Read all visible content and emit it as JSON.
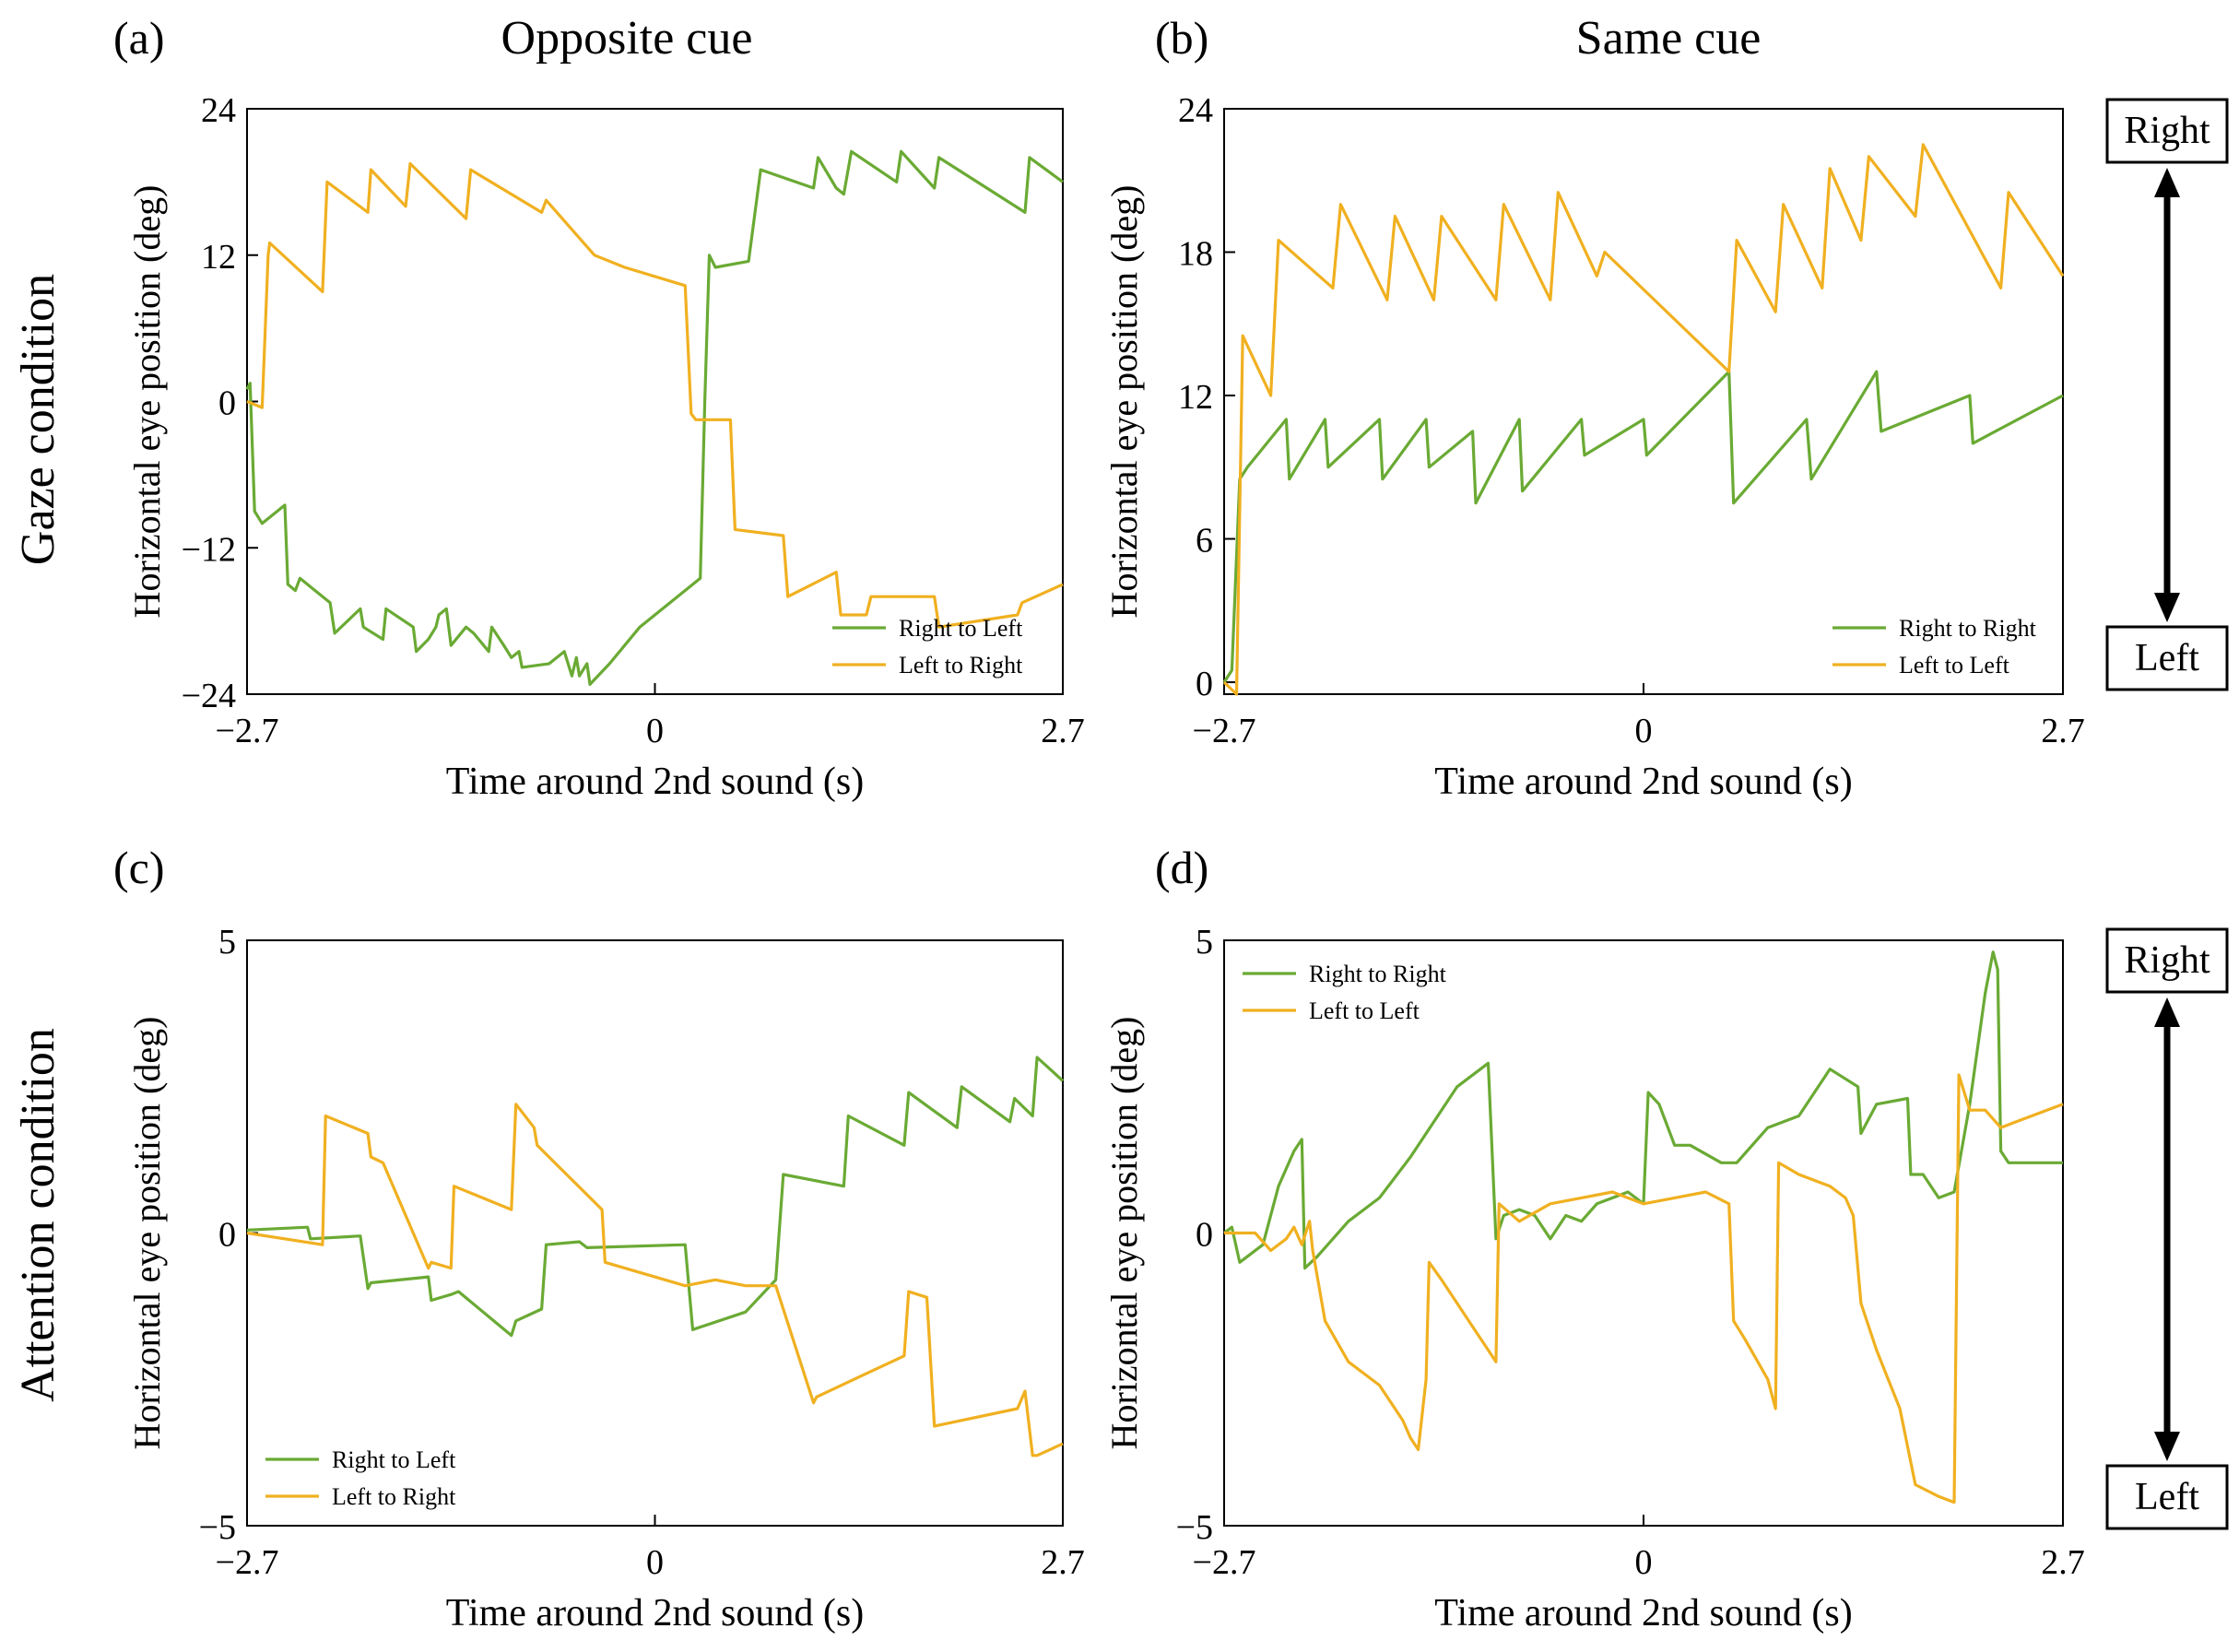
{
  "figure": {
    "col_titles": [
      "Opposite cue",
      "Same cue"
    ],
    "row_titles": [
      "Gaze condition",
      "Attention condition"
    ],
    "direction_right": "Right",
    "direction_left": "Left",
    "colors": {
      "green": "#6aaa34",
      "orange": "#f0b020"
    }
  },
  "chart_data": [
    {
      "panel": "(a)",
      "type": "line",
      "xlabel": "Time around 2nd sound (s)",
      "ylabel": "Horizontal eye position (deg)",
      "xlim": [
        -2.7,
        2.7
      ],
      "ylim": [
        -24,
        24
      ],
      "xticks": [
        -2.7,
        0,
        2.7
      ],
      "xtick_labels": [
        "−2.7",
        "0",
        "2.7"
      ],
      "yticks": [
        -24,
        -12,
        0,
        12,
        24
      ],
      "ytick_labels": [
        "−24",
        "−12",
        "0",
        "12",
        "24"
      ],
      "legend_position": "bottom-right",
      "series": [
        {
          "name": "Right to Left",
          "color": "#6aaa34",
          "x": [
            -2.7,
            -2.68,
            -2.65,
            -2.6,
            -2.45,
            -2.43,
            -2.38,
            -2.35,
            -2.15,
            -2.12,
            -1.95,
            -1.93,
            -1.8,
            -1.78,
            -1.6,
            -1.58,
            -1.5,
            -1.45,
            -1.43,
            -1.38,
            -1.35,
            -1.25,
            -1.2,
            -1.1,
            -1.08,
            -1.0,
            -0.95,
            -0.9,
            -0.88,
            -0.7,
            -0.6,
            -0.55,
            -0.52,
            -0.5,
            -0.45,
            -0.43,
            -0.3,
            -0.1,
            0.1,
            0.3,
            0.33,
            0.36,
            0.4,
            0.62,
            0.7,
            1.05,
            1.08,
            1.2,
            1.25,
            1.3,
            1.6,
            1.63,
            1.85,
            1.88,
            2.45,
            2.48,
            2.7
          ],
          "y": [
            1,
            1.5,
            -9,
            -10,
            -8.5,
            -15,
            -15.5,
            -14.5,
            -16.5,
            -19,
            -17,
            -18.5,
            -19.5,
            -17,
            -18.5,
            -20.5,
            -19.5,
            -18.5,
            -17.5,
            -17,
            -20,
            -18.5,
            -19,
            -20.5,
            -18.5,
            -20,
            -21,
            -20.5,
            -21.8,
            -21.5,
            -20.5,
            -22.5,
            -21,
            -22.5,
            -21.5,
            -23.2,
            -21.5,
            -18.5,
            -16.5,
            -14.5,
            0,
            12,
            11,
            11.5,
            19,
            17.5,
            20,
            17.5,
            17,
            20.5,
            18,
            20.5,
            17.5,
            20,
            15.5,
            20,
            18
          ]
        },
        {
          "name": "Left to Right",
          "color": "#f0b020",
          "x": [
            -2.7,
            -2.6,
            -2.56,
            -2.55,
            -2.2,
            -2.17,
            -1.9,
            -1.88,
            -1.65,
            -1.62,
            -1.25,
            -1.22,
            -0.75,
            -0.72,
            -0.4,
            -0.2,
            0.2,
            0.24,
            0.27,
            0.5,
            0.53,
            0.85,
            0.88,
            1.2,
            1.23,
            1.4,
            1.43,
            1.85,
            1.88,
            2.4,
            2.43,
            2.7
          ],
          "y": [
            0,
            -0.5,
            12,
            13,
            9,
            18,
            15.5,
            19,
            16,
            19.5,
            15,
            19,
            15.5,
            16.5,
            12,
            11,
            9.5,
            -1,
            -1.5,
            -1.5,
            -10.5,
            -11,
            -16,
            -14,
            -17.5,
            -17.5,
            -16,
            -16,
            -18.5,
            -17.5,
            -16.5,
            -15
          ]
        }
      ]
    },
    {
      "panel": "(b)",
      "type": "line",
      "xlabel": "Time around 2nd sound (s)",
      "ylabel": "Horizontal eye position (deg)",
      "xlim": [
        -2.7,
        2.7
      ],
      "ylim": [
        -0.5,
        24
      ],
      "xticks": [
        -2.7,
        0,
        2.7
      ],
      "xtick_labels": [
        "−2.7",
        "0",
        "2.7"
      ],
      "yticks": [
        0,
        6,
        12,
        18,
        24
      ],
      "ytick_labels": [
        "0",
        "6",
        "12",
        "18",
        "24"
      ],
      "legend_position": "bottom-right",
      "series": [
        {
          "name": "Right to Right",
          "color": "#6aaa34",
          "x": [
            -2.7,
            -2.65,
            -2.6,
            -2.55,
            -2.3,
            -2.28,
            -2.05,
            -2.03,
            -1.7,
            -1.68,
            -1.4,
            -1.38,
            -1.1,
            -1.08,
            -0.8,
            -0.78,
            -0.4,
            -0.38,
            0.0,
            0.02,
            0.55,
            0.58,
            1.05,
            1.08,
            1.5,
            1.53,
            2.1,
            2.12,
            2.7
          ],
          "y": [
            0,
            0.5,
            8.5,
            9,
            11,
            8.5,
            11,
            9,
            11,
            8.5,
            11,
            9,
            10.5,
            7.5,
            11,
            8,
            11,
            9.5,
            11,
            9.5,
            13,
            7.5,
            11,
            8.5,
            13,
            10.5,
            12,
            10,
            12
          ]
        },
        {
          "name": "Left to Left",
          "color": "#f0b020",
          "x": [
            -2.7,
            -2.62,
            -2.58,
            -2.4,
            -2.35,
            -2.0,
            -1.95,
            -1.65,
            -1.6,
            -1.35,
            -1.3,
            -0.95,
            -0.9,
            -0.6,
            -0.55,
            -0.3,
            -0.25,
            0.55,
            0.6,
            0.85,
            0.9,
            1.15,
            1.2,
            1.4,
            1.45,
            1.75,
            1.8,
            2.3,
            2.35,
            2.7
          ],
          "y": [
            0,
            -0.5,
            14.5,
            12,
            18.5,
            16.5,
            20,
            16,
            19.5,
            16,
            19.5,
            16,
            20,
            16,
            20.5,
            17,
            18,
            13,
            18.5,
            15.5,
            20,
            16.5,
            21.5,
            18.5,
            22,
            19.5,
            22.5,
            16.5,
            20.5,
            17
          ]
        }
      ]
    },
    {
      "panel": "(c)",
      "type": "line",
      "xlabel": "Time around 2nd sound (s)",
      "ylabel": "Horizontal eye position (deg)",
      "xlim": [
        -2.7,
        2.7
      ],
      "ylim": [
        -5,
        5
      ],
      "xticks": [
        -2.7,
        0,
        2.7
      ],
      "xtick_labels": [
        "−2.7",
        "0",
        "2.7"
      ],
      "yticks": [
        -5,
        0,
        5
      ],
      "ytick_labels": [
        "−5",
        "0",
        "5"
      ],
      "legend_position": "bottom-left",
      "series": [
        {
          "name": "Right to Left",
          "color": "#6aaa34",
          "x": [
            -2.7,
            -2.3,
            -2.28,
            -1.95,
            -1.9,
            -1.88,
            -1.5,
            -1.48,
            -1.35,
            -1.3,
            -0.95,
            -0.92,
            -0.75,
            -0.72,
            -0.5,
            -0.45,
            0.2,
            0.25,
            0.6,
            0.8,
            0.85,
            1.25,
            1.28,
            1.65,
            1.68,
            2.0,
            2.03,
            2.35,
            2.38,
            2.5,
            2.53,
            2.7
          ],
          "y": [
            0.05,
            0.1,
            -0.1,
            -0.05,
            -0.95,
            -0.85,
            -0.75,
            -1.15,
            -1.05,
            -1.0,
            -1.75,
            -1.5,
            -1.3,
            -0.2,
            -0.15,
            -0.25,
            -0.2,
            -1.65,
            -1.35,
            -0.8,
            1.0,
            0.8,
            2.0,
            1.5,
            2.4,
            1.8,
            2.5,
            1.9,
            2.3,
            2.0,
            3.0,
            2.6
          ]
        },
        {
          "name": "Left to Right",
          "color": "#f0b020",
          "x": [
            -2.7,
            -2.2,
            -2.18,
            -1.9,
            -1.88,
            -1.8,
            -1.5,
            -1.48,
            -1.35,
            -1.33,
            -0.95,
            -0.92,
            -0.8,
            -0.78,
            -0.35,
            -0.33,
            0.2,
            0.4,
            0.6,
            0.8,
            1.05,
            1.07,
            1.4,
            1.65,
            1.68,
            1.8,
            1.85,
            2.4,
            2.45,
            2.5,
            2.53,
            2.7
          ],
          "y": [
            0,
            -0.2,
            2.0,
            1.7,
            1.3,
            1.2,
            -0.6,
            -0.5,
            -0.6,
            0.8,
            0.4,
            2.2,
            1.8,
            1.5,
            0.4,
            -0.5,
            -0.9,
            -0.8,
            -0.9,
            -0.9,
            -2.9,
            -2.8,
            -2.4,
            -2.1,
            -1.0,
            -1.1,
            -3.3,
            -3.0,
            -2.7,
            -3.8,
            -3.8,
            -3.6
          ]
        }
      ]
    },
    {
      "panel": "(d)",
      "type": "line",
      "xlabel": "Time around 2nd sound (s)",
      "ylabel": "Horizontal eye position (deg)",
      "xlim": [
        -2.7,
        2.7
      ],
      "ylim": [
        -5,
        5
      ],
      "xticks": [
        -2.7,
        0,
        2.7
      ],
      "xtick_labels": [
        "−2.7",
        "0",
        "2.7"
      ],
      "yticks": [
        -5,
        0,
        5
      ],
      "ytick_labels": [
        "−5",
        "0",
        "5"
      ],
      "legend_position": "top-left",
      "series": [
        {
          "name": "Right to Right",
          "color": "#6aaa34",
          "x": [
            -2.7,
            -2.65,
            -2.6,
            -2.45,
            -2.35,
            -2.25,
            -2.2,
            -2.18,
            -2.1,
            -1.9,
            -1.7,
            -1.5,
            -1.3,
            -1.2,
            -1.0,
            -0.95,
            -0.9,
            -0.8,
            -0.7,
            -0.6,
            -0.5,
            -0.4,
            -0.3,
            -0.2,
            -0.1,
            0.0,
            0.03,
            0.1,
            0.2,
            0.3,
            0.5,
            0.6,
            0.8,
            1.0,
            1.2,
            1.38,
            1.4,
            1.5,
            1.7,
            1.72,
            1.8,
            1.9,
            2.0,
            2.1,
            2.2,
            2.25,
            2.28,
            2.3,
            2.35,
            2.4,
            2.7
          ],
          "y": [
            0,
            0.1,
            -0.5,
            -0.2,
            0.8,
            1.4,
            1.6,
            -0.6,
            -0.4,
            0.2,
            0.6,
            1.3,
            2.1,
            2.5,
            2.9,
            -0.1,
            0.3,
            0.4,
            0.3,
            -0.1,
            0.3,
            0.2,
            0.5,
            0.6,
            0.7,
            0.5,
            2.4,
            2.2,
            1.5,
            1.5,
            1.2,
            1.2,
            1.8,
            2.0,
            2.8,
            2.5,
            1.7,
            2.2,
            2.3,
            1.0,
            1.0,
            0.6,
            0.7,
            2.2,
            4.1,
            4.8,
            4.5,
            1.4,
            1.2,
            1.2,
            1.2
          ]
        },
        {
          "name": "Left to Left",
          "color": "#f0b020",
          "x": [
            -2.7,
            -2.5,
            -2.4,
            -2.3,
            -2.25,
            -2.2,
            -2.15,
            -2.13,
            -2.05,
            -1.9,
            -1.7,
            -1.55,
            -1.5,
            -1.45,
            -1.4,
            -1.38,
            -1.3,
            -1.2,
            -1.1,
            -1.0,
            -0.95,
            -0.93,
            -0.8,
            -0.6,
            -0.4,
            -0.2,
            0.0,
            0.2,
            0.4,
            0.55,
            0.58,
            0.65,
            0.8,
            0.85,
            0.87,
            1.0,
            1.2,
            1.3,
            1.35,
            1.4,
            1.5,
            1.65,
            1.75,
            1.9,
            2.0,
            2.03,
            2.1,
            2.2,
            2.3,
            2.4,
            2.7
          ],
          "y": [
            0,
            0,
            -0.3,
            -0.1,
            0.1,
            -0.2,
            0.2,
            -0.3,
            -1.5,
            -2.2,
            -2.6,
            -3.2,
            -3.5,
            -3.7,
            -2.5,
            -0.5,
            -0.8,
            -1.2,
            -1.6,
            -2.0,
            -2.2,
            0.5,
            0.2,
            0.5,
            0.6,
            0.7,
            0.5,
            0.6,
            0.7,
            0.5,
            -1.5,
            -1.8,
            -2.5,
            -3.0,
            1.2,
            1.0,
            0.8,
            0.6,
            0.3,
            -1.2,
            -2.0,
            -3.0,
            -4.3,
            -4.5,
            -4.6,
            2.7,
            2.1,
            2.1,
            1.8,
            1.9,
            2.2
          ]
        }
      ]
    }
  ]
}
